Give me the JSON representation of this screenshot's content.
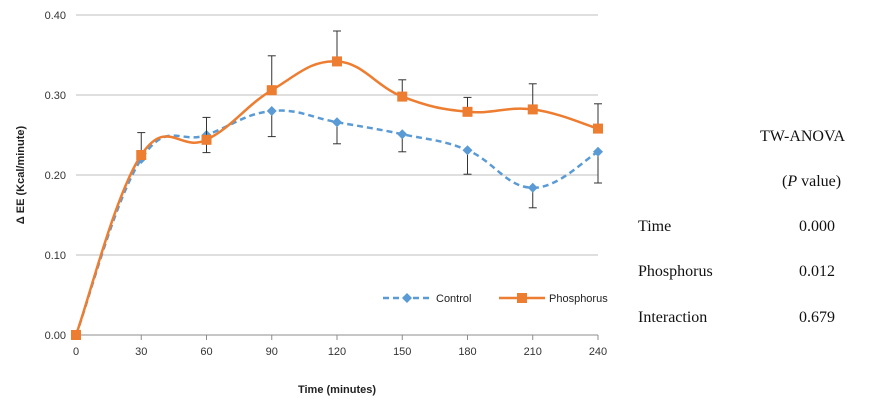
{
  "chart_data": {
    "type": "line",
    "xlabel": "Time (minutes)",
    "ylabel": "Δ EE (Kcal/minute)",
    "x": [
      0,
      30,
      60,
      90,
      120,
      150,
      180,
      210,
      240
    ],
    "xticks": [
      "0",
      "30",
      "60",
      "90",
      "120",
      "150",
      "180",
      "210",
      "240"
    ],
    "yticks": [
      "0.00",
      "0.10",
      "0.20",
      "0.30",
      "0.40"
    ],
    "ylim": [
      0,
      0.4
    ],
    "xlim": [
      0,
      240
    ],
    "grid": "horizontal",
    "legend_position": "bottom-right",
    "series": [
      {
        "name": "Control",
        "color": "#5b9bd5",
        "marker": "diamond",
        "line": "dashed",
        "values": [
          0.0,
          0.22,
          0.25,
          0.28,
          0.266,
          0.251,
          0.231,
          0.184,
          0.229
        ],
        "error": [
          0,
          0,
          0.022,
          0.032,
          0.027,
          0.022,
          0.03,
          0.025,
          0.039
        ]
      },
      {
        "name": "Phosphorus",
        "color": "#ed7d31",
        "marker": "square",
        "line": "solid",
        "values": [
          0.0,
          0.225,
          0.244,
          0.306,
          0.342,
          0.298,
          0.279,
          0.282,
          0.258
        ],
        "error": [
          0,
          0.028,
          0.028,
          0.043,
          0.038,
          0.021,
          0.018,
          0.032,
          0.031
        ]
      }
    ]
  },
  "stats_table": {
    "title": "TW-ANOVA",
    "subtitle_prefix": "(",
    "subtitle_italic": "P",
    "subtitle_suffix": " value)",
    "rows": [
      {
        "label": "Time",
        "value": "0.000"
      },
      {
        "label": "Phosphorus",
        "value": "0.012"
      },
      {
        "label": "Interaction",
        "value": "0.679"
      }
    ]
  }
}
